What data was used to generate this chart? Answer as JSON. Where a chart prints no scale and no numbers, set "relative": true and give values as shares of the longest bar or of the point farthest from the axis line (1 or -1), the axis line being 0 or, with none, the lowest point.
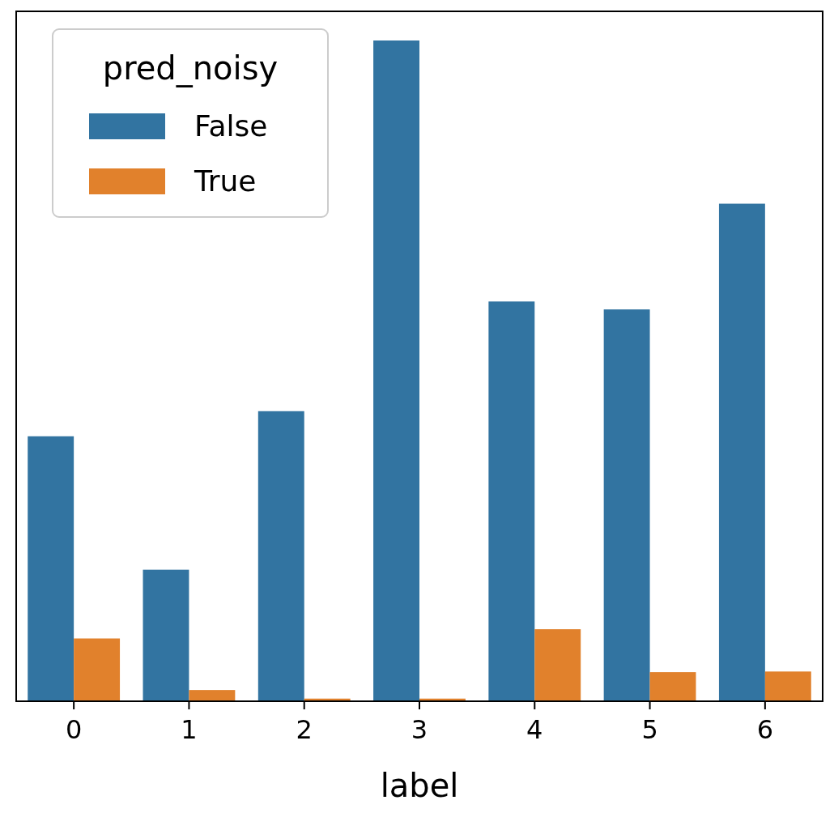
{
  "chart_data": {
    "type": "bar",
    "xlabel": "label",
    "legend_title": "pred_noisy",
    "categories": [
      "0",
      "1",
      "2",
      "3",
      "4",
      "5",
      "6"
    ],
    "relative": true,
    "legend": "top left",
    "series": [
      {
        "name": "False",
        "color": "#3274a1",
        "values": [
          0.401,
          0.199,
          0.439,
          1,
          0.605,
          0.593,
          0.753
        ]
      },
      {
        "name": "True",
        "color": "#e1812c",
        "values": [
          0.095,
          0.017,
          0.004,
          0.004,
          0.109,
          0.044,
          0.045
        ]
      }
    ]
  }
}
